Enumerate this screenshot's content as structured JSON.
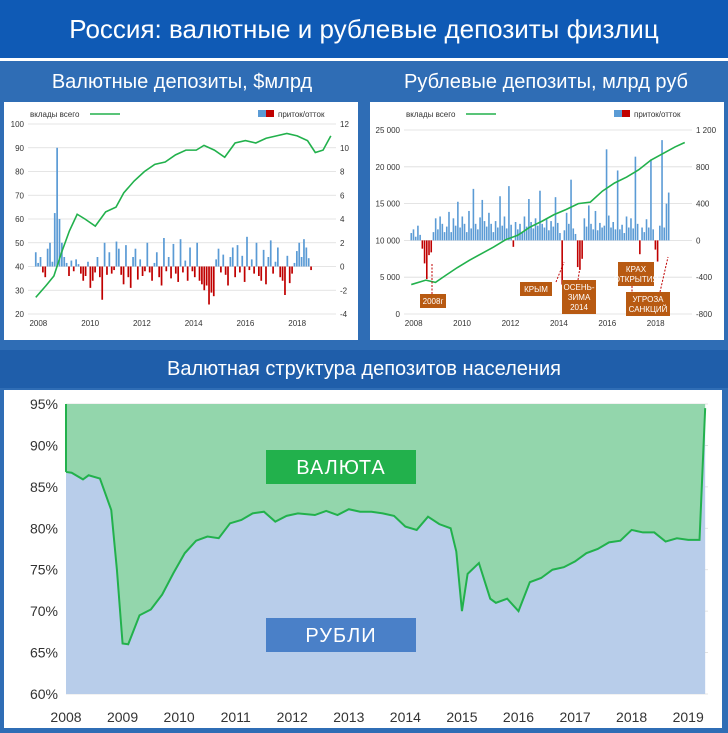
{
  "header": {
    "title": "Россия: валютные и рублевые депозиты физлиц"
  },
  "colors": {
    "total": "#22b14c",
    "inflow": "#5b9bd5",
    "outflow": "#c00000",
    "fx_area": "#93d6ac",
    "rub_area": "#b8cdea",
    "note_bg": "#b85a12"
  },
  "chart_data": [
    {
      "type": "bar",
      "title": "Валютные депозиты, $млрд",
      "legend": {
        "total": "вклады всего",
        "flow": "приток/отток"
      },
      "x_ticks": [
        "2008",
        "2010",
        "2012",
        "2014",
        "2016",
        "2018"
      ],
      "y_left": {
        "min": 20,
        "max": 100,
        "ticks": [
          "20",
          "30",
          "40",
          "50",
          "60",
          "70",
          "80",
          "90",
          "100"
        ]
      },
      "y_right": {
        "min": -4,
        "max": 12,
        "ticks": [
          "-4",
          "-2",
          "0",
          "2",
          "4",
          "6",
          "8",
          "10",
          "12"
        ]
      },
      "total": {
        "x": [
          2007.9,
          2008.3,
          2008.6,
          2008.9,
          2009.2,
          2009.5,
          2009.8,
          2010.2,
          2010.6,
          2011.0,
          2011.3,
          2011.7,
          2012.1,
          2012.5,
          2012.9,
          2013.3,
          2013.7,
          2014.1,
          2014.4,
          2014.8,
          2015.2,
          2015.6,
          2016.0,
          2016.4,
          2016.8,
          2017.2,
          2017.6,
          2018.0,
          2018.4,
          2018.7,
          2019.0,
          2019.3
        ],
        "y": [
          27,
          32,
          36,
          46,
          55,
          62,
          60,
          57,
          63,
          65,
          71,
          76,
          80,
          83,
          84,
          87,
          89,
          89,
          91,
          89,
          86,
          92,
          93,
          92,
          94,
          95,
          96,
          95,
          93,
          88,
          89,
          95
        ]
      },
      "flows": {
        "start": 2007.9,
        "step": 0.0917,
        "values": [
          1.2,
          0.3,
          0.8,
          -0.5,
          -0.9,
          1.5,
          2.0,
          0.4,
          4.5,
          10.0,
          4.0,
          2.0,
          0.8,
          0.3,
          -0.8,
          0.5,
          -0.4,
          0.6,
          0.2,
          -0.6,
          -1.2,
          -0.8,
          0.4,
          -1.8,
          -1.2,
          -0.5,
          0.8,
          -0.9,
          -2.8,
          2.0,
          -0.7,
          1.2,
          -0.6,
          -0.3,
          2.1,
          1.5,
          -0.7,
          -1.5,
          1.8,
          -0.9,
          -1.8,
          0.8,
          1.5,
          -1.1,
          0.6,
          -0.8,
          -0.4,
          2.0,
          -0.5,
          -1.2,
          0.3,
          1.2,
          -0.9,
          -1.6,
          2.4,
          -0.4,
          0.8,
          -1.0,
          1.9,
          -0.6,
          -1.3,
          2.3,
          -0.5,
          0.5,
          -1.2,
          1.6,
          -0.4,
          -0.9,
          2.0,
          -1.2,
          -1.5,
          -2.0,
          -1.6,
          -3.2,
          -2.2,
          -2.5,
          0.6,
          1.5,
          -0.5,
          1.0,
          -0.7,
          -1.6,
          0.8,
          1.6,
          -0.9,
          1.8,
          -0.5,
          0.9,
          -1.3,
          2.5,
          -0.3,
          0.6,
          -0.6,
          2.0,
          -0.8,
          -1.2,
          1.4,
          -1.5,
          0.8,
          2.2,
          -0.6,
          0.4,
          1.6,
          -0.9,
          -1.2,
          -2.4,
          0.9,
          -1.4,
          -0.6,
          0.3,
          1.3,
          2.0,
          0.8,
          2.3,
          1.6,
          0.7,
          -0.3
        ]
      }
    },
    {
      "type": "bar",
      "title": "Рублевые депозиты, млрд руб",
      "legend": {
        "total": "вклады всего",
        "flow": "приток/отток"
      },
      "x_ticks": [
        "2008",
        "2010",
        "2012",
        "2014",
        "2016",
        "2018"
      ],
      "y_left": {
        "min": 0,
        "max": 25000,
        "ticks": [
          "0",
          "5 000",
          "10 000",
          "15 000",
          "20 000",
          "25 000"
        ]
      },
      "y_right": {
        "min": -800,
        "max": 1200,
        "ticks": [
          "-800",
          "-400",
          "0",
          "400",
          "800",
          "1 200"
        ]
      },
      "total": {
        "x": [
          2007.9,
          2008.5,
          2008.9,
          2009.3,
          2009.8,
          2010.3,
          2010.8,
          2011.3,
          2011.8,
          2012.3,
          2012.8,
          2013.3,
          2013.8,
          2014.3,
          2014.8,
          2015.3,
          2015.8,
          2016.3,
          2016.8,
          2017.3,
          2017.8,
          2018.3,
          2018.8,
          2019.2
        ],
        "y": [
          4000,
          4600,
          4300,
          5200,
          6300,
          7300,
          8200,
          9100,
          10100,
          10700,
          11800,
          12600,
          13500,
          14200,
          15000,
          15200,
          16700,
          17800,
          18600,
          19600,
          20900,
          21800,
          22700,
          23300
        ]
      },
      "flows": {
        "start": 2007.9,
        "step": 0.0917,
        "values": [
          80,
          120,
          40,
          160,
          60,
          -90,
          -250,
          -420,
          -160,
          -130,
          90,
          240,
          120,
          260,
          180,
          90,
          150,
          310,
          90,
          240,
          160,
          420,
          140,
          260,
          180,
          90,
          320,
          130,
          560,
          180,
          120,
          250,
          440,
          210,
          150,
          300,
          180,
          90,
          210,
          140,
          480,
          160,
          260,
          130,
          590,
          170,
          -70,
          200,
          120,
          180,
          90,
          260,
          150,
          450,
          200,
          130,
          240,
          160,
          540,
          180,
          140,
          230,
          110,
          210,
          150,
          470,
          190,
          80,
          -480,
          110,
          300,
          180,
          660,
          130,
          70,
          -290,
          -320,
          -200,
          240,
          150,
          380,
          180,
          120,
          320,
          110,
          190,
          140,
          160,
          990,
          270,
          140,
          200,
          120,
          760,
          120,
          170,
          80,
          260,
          140,
          240,
          130,
          910,
          180,
          -150,
          140,
          90,
          230,
          140,
          880,
          120,
          -100,
          -230,
          160,
          1090,
          140,
          400,
          520
        ]
      },
      "annotations": [
        "2008г",
        "КРЫМ",
        "ОСЕНЬ-ЗИМА 2014",
        "КРАХ ОТКРЫТИЯ",
        "УГРОЗА САНКЦИЙ"
      ]
    },
    {
      "type": "area",
      "title": "Валютная структура депозитов населения",
      "x_ticks": [
        "2008",
        "2009",
        "2010",
        "2011",
        "2012",
        "2013",
        "2014",
        "2015",
        "2016",
        "2017",
        "2018",
        "2019"
      ],
      "y_ticks": [
        "60%",
        "65%",
        "70%",
        "75%",
        "80%",
        "85%",
        "90%",
        "95%"
      ],
      "ylim": [
        60,
        95
      ],
      "labels": {
        "fx": "ВАЛЮТА",
        "rub": "РУБЛИ"
      },
      "rub_share": {
        "x": [
          2008.0,
          2008.1,
          2008.3,
          2008.4,
          2008.6,
          2008.8,
          2008.9,
          2009.0,
          2009.1,
          2009.3,
          2009.5,
          2009.7,
          2009.9,
          2010.1,
          2010.3,
          2010.5,
          2010.7,
          2010.9,
          2011.1,
          2011.3,
          2011.5,
          2011.7,
          2011.9,
          2012.1,
          2012.4,
          2012.6,
          2012.8,
          2013.0,
          2013.2,
          2013.4,
          2013.6,
          2013.8,
          2014.0,
          2014.2,
          2014.4,
          2014.6,
          2014.8,
          2014.9,
          2015.0,
          2015.1,
          2015.3,
          2015.5,
          2015.6,
          2015.8,
          2016.0,
          2016.2,
          2016.4,
          2016.6,
          2016.8,
          2017.0,
          2017.2,
          2017.4,
          2017.6,
          2017.8,
          2018.0,
          2018.2,
          2018.4,
          2018.6,
          2018.8,
          2019.0,
          2019.2,
          2019.3
        ],
        "y": [
          86.8,
          86.7,
          85.9,
          86.4,
          86.0,
          82.2,
          75.0,
          66.1,
          66.0,
          69.5,
          70.2,
          72.0,
          74.6,
          77.0,
          78.5,
          79.0,
          78.8,
          80.6,
          81.0,
          81.8,
          82.0,
          80.8,
          81.5,
          81.8,
          81.6,
          82.1,
          81.6,
          82.3,
          82.0,
          82.0,
          81.8,
          81.5,
          80.2,
          79.8,
          81.4,
          80.5,
          80.0,
          77.2,
          70.0,
          74.5,
          75.8,
          71.5,
          71.0,
          71.5,
          70.0,
          73.5,
          74.0,
          75.0,
          75.3,
          76.0,
          77.0,
          77.5,
          78.3,
          78.5,
          79.8,
          79.5,
          79.5,
          78.4,
          78.8,
          78.6,
          78.6,
          94.5
        ]
      }
    }
  ]
}
